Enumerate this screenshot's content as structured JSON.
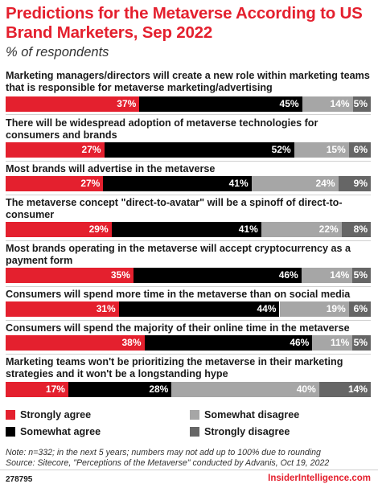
{
  "title": "Predictions for the Metaverse According to US Brand Marketers, Sep 2022",
  "subtitle": "% of respondents",
  "colors": {
    "strongly_agree": "#e4202e",
    "somewhat_agree": "#000000",
    "somewhat_disagree": "#a6a6a6",
    "strongly_disagree": "#666666"
  },
  "chart_data": {
    "type": "bar",
    "orientation": "horizontal",
    "stacked": true,
    "categories": [
      "Marketing managers/directors will create a new role within marketing teams that is responsible for metaverse marketing/advertising",
      "There will be widespread adoption of metaverse technologies for consumers and brands",
      "Most brands will advertise in the metaverse",
      "The metaverse concept \"direct-to-avatar\" will be a spinoff of direct-to-consumer",
      "Most brands operating in the metaverse will accept cryptocurrency as a payment form",
      "Consumers will spend more time in the metaverse than on social media",
      "Consumers will spend the majority of their online time in the metaverse",
      "Marketing teams won't be prioritizing the metaverse in their marketing strategies and it won't be a longstanding hype"
    ],
    "series": [
      {
        "name": "Strongly agree",
        "values": [
          37,
          27,
          27,
          29,
          35,
          31,
          38,
          17
        ]
      },
      {
        "name": "Somewhat agree",
        "values": [
          45,
          52,
          41,
          41,
          46,
          44,
          46,
          28
        ]
      },
      {
        "name": "Somewhat disagree",
        "values": [
          14,
          15,
          24,
          22,
          14,
          19,
          11,
          40
        ]
      },
      {
        "name": "Strongly disagree",
        "values": [
          5,
          6,
          9,
          8,
          5,
          6,
          5,
          14
        ]
      }
    ],
    "value_suffix": "%",
    "legend_placement": "bottom"
  },
  "notes": {
    "note": "Note: n=332; in the next 5 years; numbers may not add up to 100% due to rounding",
    "source": "Source: Sitecore, \"Perceptions of the Metaverse\" conducted by Advanis, Oct 19, 2022"
  },
  "footer": {
    "id": "278795",
    "brand": "InsiderIntelligence.com"
  }
}
